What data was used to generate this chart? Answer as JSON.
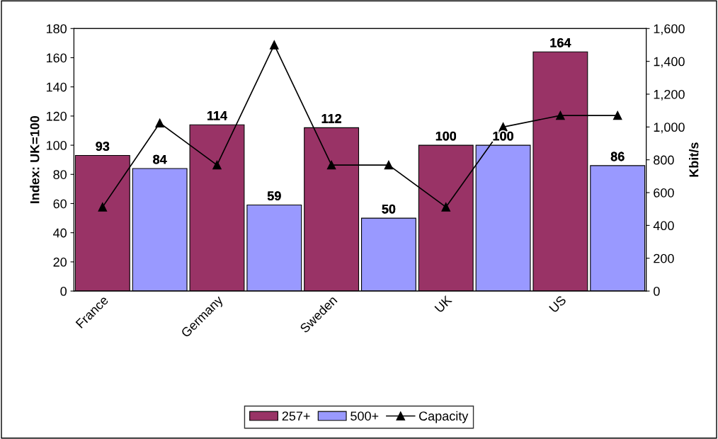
{
  "chart_data": {
    "type": "bar",
    "categories": [
      "France",
      null,
      "Germany",
      null,
      "Sweden",
      null,
      "UK",
      null,
      "US",
      null
    ],
    "series": [
      {
        "name": "257+",
        "color": "#993366",
        "values": [
          93,
          null,
          114,
          null,
          112,
          null,
          100,
          null,
          164,
          null
        ],
        "value_labels": [
          "93",
          null,
          "114",
          null,
          "112",
          null,
          "100",
          null,
          "164",
          null
        ]
      },
      {
        "name": "500+",
        "color": "#9999ff",
        "values": [
          null,
          84,
          null,
          59,
          null,
          50,
          null,
          100,
          null,
          86
        ],
        "value_labels": [
          null,
          "84",
          null,
          "59",
          null,
          "50",
          null,
          "100",
          null,
          "86"
        ]
      },
      {
        "name": "Capacity",
        "type": "line",
        "axis": "y2",
        "color": "#000000",
        "marker": "triangle",
        "values": [
          512,
          1024,
          768,
          1500,
          768,
          768,
          512,
          1000,
          1070,
          1070
        ]
      }
    ],
    "ylabel": "Index: UK=100",
    "y2label": "Kbit/s",
    "ylim": [
      0,
      180
    ],
    "yticks": [
      0,
      20,
      40,
      60,
      80,
      100,
      120,
      140,
      160,
      180
    ],
    "y2lim": [
      0,
      1600
    ],
    "y2ticks": [
      0,
      {
        "value": 200,
        "label": "200"
      },
      {
        "value": 400,
        "label": "400"
      },
      {
        "value": 600,
        "label": "600"
      },
      {
        "value": 800,
        "label": "800"
      },
      {
        "value": 1000,
        "label": "1,000"
      },
      {
        "value": 1200,
        "label": "1,200"
      },
      {
        "value": 1400,
        "label": "1,400"
      },
      {
        "value": 1600,
        "label": "1,600"
      }
    ],
    "legend": "bottom",
    "grid": false
  }
}
